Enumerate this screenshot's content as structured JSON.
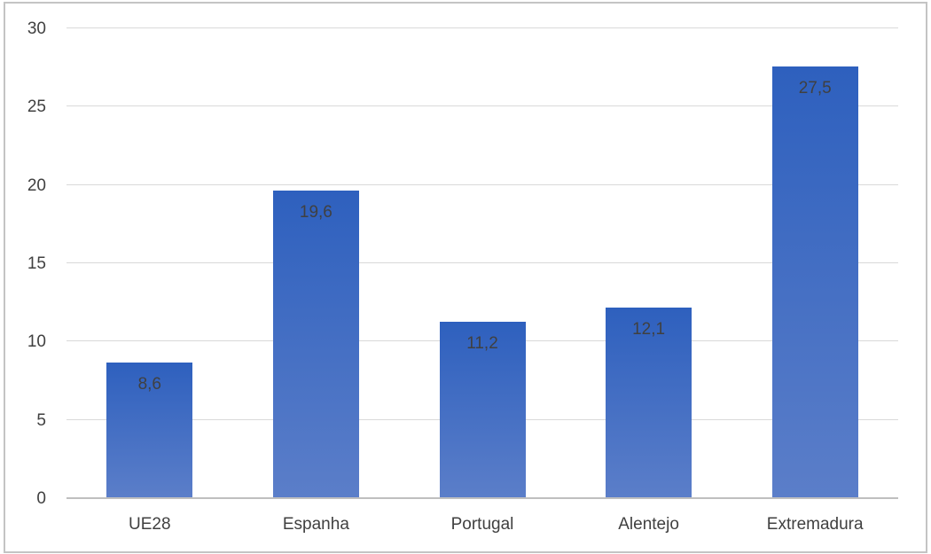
{
  "chart_data": {
    "type": "bar",
    "categories": [
      "UE28",
      "Espanha",
      "Portugal",
      "Alentejo",
      "Extremadura"
    ],
    "values": [
      8.6,
      19.6,
      11.2,
      12.1,
      27.5
    ],
    "value_labels": [
      "8,6",
      "19,6",
      "11,2",
      "12,1",
      "27,5"
    ],
    "title": "",
    "xlabel": "",
    "ylabel": "",
    "ylim": [
      0,
      30
    ],
    "yticks": [
      0,
      5,
      10,
      15,
      20,
      25,
      30
    ],
    "grid": true,
    "legend": false,
    "decimal_separator": ",",
    "value_label_position": "inside-top",
    "colors": {
      "bar_top": "#2E60BE",
      "bar_bottom": "#5B7EC9",
      "gridline": "#D9D9D9",
      "axis_line": "#BFBFBF",
      "text": "#404040",
      "frame_border": "#C4C4C4",
      "background": "#FFFFFF"
    }
  }
}
